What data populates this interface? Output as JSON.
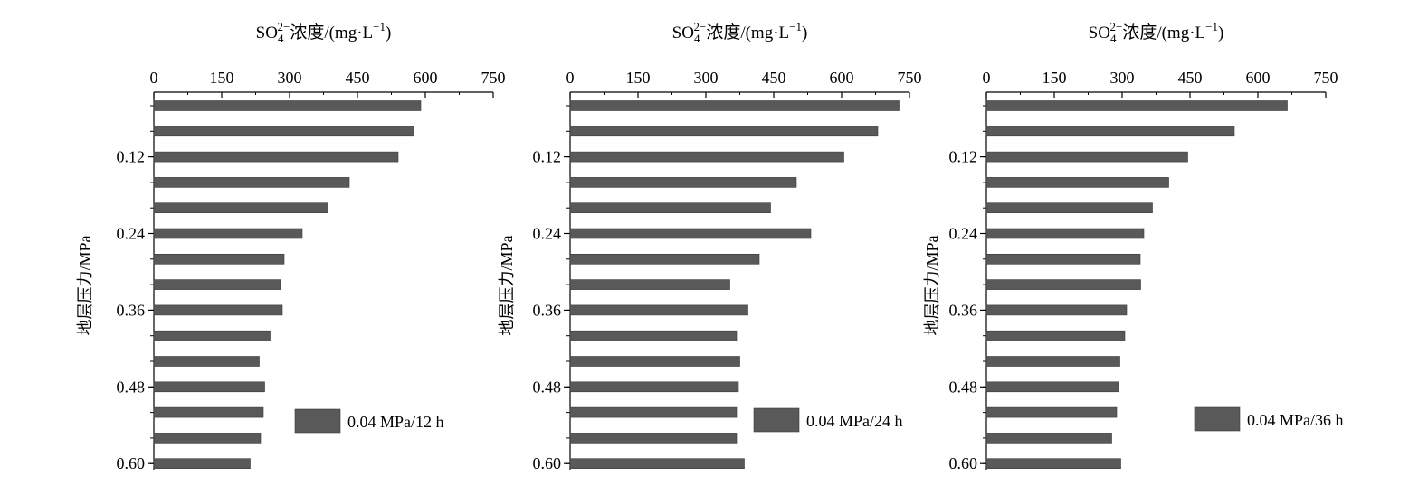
{
  "chart_data": [
    {
      "type": "bar",
      "orientation": "horizontal",
      "title_base": "SO",
      "title_sub": "4",
      "title_sup": "2−",
      "title_rest": "浓度/(mg·L",
      "title_unit_sup": "−1",
      "title_close": ")",
      "ylabel": "地层压力/MPa",
      "xlim": [
        0,
        750
      ],
      "xticks": [
        "0",
        "150",
        "300",
        "450",
        "600",
        "750"
      ],
      "yticks": [
        "0.12",
        "0.24",
        "0.36",
        "0.48",
        "0.60"
      ],
      "y": [
        0.04,
        0.08,
        0.12,
        0.16,
        0.2,
        0.24,
        0.28,
        0.32,
        0.36,
        0.4,
        0.44,
        0.48,
        0.52,
        0.56,
        0.6
      ],
      "series": [
        {
          "name": "0.04 MPa/12 h",
          "values": [
            590,
            575,
            540,
            432,
            385,
            328,
            288,
            280,
            284,
            257,
            233,
            245,
            242,
            236,
            213
          ]
        }
      ],
      "legend_position": "bottom-right",
      "bar_color": "#595959"
    },
    {
      "type": "bar",
      "orientation": "horizontal",
      "title_base": "SO",
      "title_sub": "4",
      "title_sup": "2−",
      "title_rest": "浓度/(mg·L",
      "title_unit_sup": "−1",
      "title_close": ")",
      "ylabel": "地层压力/MPa",
      "xlim": [
        0,
        750
      ],
      "xticks": [
        "0",
        "150",
        "300",
        "450",
        "600",
        "750"
      ],
      "yticks": [
        "0.12",
        "0.24",
        "0.36",
        "0.48",
        "0.60"
      ],
      "y": [
        0.04,
        0.08,
        0.12,
        0.16,
        0.2,
        0.24,
        0.28,
        0.32,
        0.36,
        0.4,
        0.44,
        0.48,
        0.52,
        0.56,
        0.6
      ],
      "series": [
        {
          "name": "0.04 MPa/24 h",
          "values": [
            727,
            680,
            605,
            500,
            443,
            532,
            418,
            353,
            393,
            368,
            375,
            372,
            368,
            368,
            385
          ]
        }
      ],
      "legend_position": "bottom-right",
      "bar_color": "#595959"
    },
    {
      "type": "bar",
      "orientation": "horizontal",
      "title_base": "SO",
      "title_sub": "4",
      "title_sup": "2−",
      "title_rest": "浓度/(mg·L",
      "title_unit_sup": "−1",
      "title_close": ")",
      "ylabel": "地层压力/MPa",
      "xlim": [
        0,
        750
      ],
      "xticks": [
        "0",
        "150",
        "300",
        "450",
        "600",
        "750"
      ],
      "yticks": [
        "0.12",
        "0.24",
        "0.36",
        "0.48",
        "0.60"
      ],
      "y": [
        0.04,
        0.08,
        0.12,
        0.16,
        0.2,
        0.24,
        0.28,
        0.32,
        0.36,
        0.4,
        0.44,
        0.48,
        0.52,
        0.56,
        0.6
      ],
      "series": [
        {
          "name": "0.04 MPa/36 h",
          "values": [
            665,
            548,
            445,
            403,
            367,
            348,
            340,
            341,
            310,
            306,
            295,
            292,
            288,
            277,
            297
          ]
        }
      ],
      "legend_position": "bottom-right",
      "bar_color": "#595959"
    }
  ]
}
